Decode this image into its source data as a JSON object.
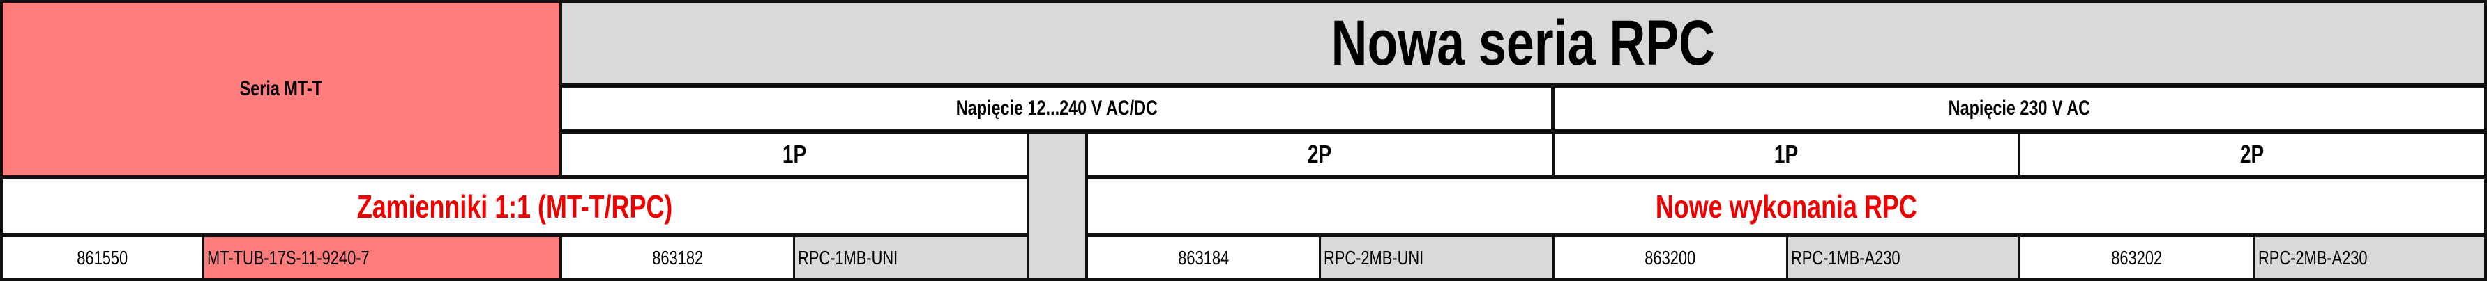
{
  "header": {
    "old_series": "Seria MT-T",
    "new_series": "Nowa seria RPC",
    "voltage_groups": [
      "Napięcie 12...240 V AC/DC",
      "Napięcie 230 V AC"
    ],
    "poles": [
      "1P",
      "2P",
      "1P",
      "2P"
    ]
  },
  "sections": {
    "replacements": "Zamienniki 1:1 (MT-T/RPC)",
    "new_versions": "Nowe wykonania RPC"
  },
  "row": {
    "old_code": "861550",
    "old_name": "MT-TUB-17S-11-9240-7",
    "items": [
      {
        "code": "863182",
        "name": "RPC-1MB-UNI"
      },
      {
        "code": "863184",
        "name": "RPC-2MB-UNI"
      },
      {
        "code": "863200",
        "name": "RPC-1MB-A230"
      },
      {
        "code": "863202",
        "name": "RPC-2MB-A230"
      }
    ]
  },
  "colors": {
    "old_series_fill": "#ff7c7c",
    "header_fill": "#d9d9d9",
    "section_text": "#ee0000"
  }
}
